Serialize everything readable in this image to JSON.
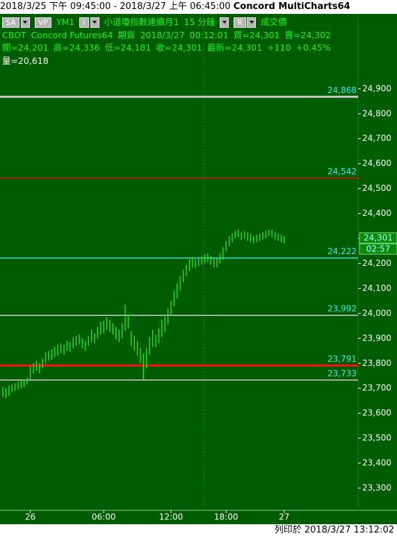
{
  "window_title": {
    "range": "2018/3/25 下午 09:45:00 - 2018/3/27 上午 06:45:00",
    "app": "Concord MultiCharts64"
  },
  "print_footer": "列印於 2018/3/27 13:12:02",
  "header": {
    "row1": {
      "buttons": [
        "SA",
        "VP"
      ],
      "symbol": "YM1",
      "button_i": "I",
      "name": "小道瓊指數連續月1",
      "interval": "15 分鐘",
      "button_r": "R",
      "field": "成交價"
    },
    "row2": [
      "CBOT",
      "Concord Futures64",
      "期貨",
      "2018/3/27",
      "00:12:01",
      "買=24,301",
      "賣=24,302"
    ],
    "row3": [
      "開=24,201",
      "高=24,336",
      "低=24,181",
      "收=24,301",
      "最新=24,301",
      "+110",
      "+0.45%"
    ],
    "row4": "量=20,618"
  },
  "chart_data": {
    "type": "hl",
    "color": "#2ee62e",
    "background": "#005c00",
    "ylim": [
      23211,
      25200
    ],
    "yticks": [
      {
        "value": 23300,
        "label": "23,300"
      },
      {
        "value": 23400,
        "label": "23,400"
      },
      {
        "value": 23500,
        "label": "23,500"
      },
      {
        "value": 23600,
        "label": "23,600"
      },
      {
        "value": 23700,
        "label": "23,700"
      },
      {
        "value": 23800,
        "label": "23,800"
      },
      {
        "value": 23900,
        "label": "23,900"
      },
      {
        "value": 24000,
        "label": "24,000"
      },
      {
        "value": 24100,
        "label": "24,100"
      },
      {
        "value": 24200,
        "label": "24,200"
      },
      {
        "value": 24300,
        "label": "24,300"
      },
      {
        "value": 24400,
        "label": "24,400"
      },
      {
        "value": 24500,
        "label": "24,500"
      },
      {
        "value": 24600,
        "label": "24,600"
      },
      {
        "value": 24700,
        "label": "24,700"
      },
      {
        "value": 24800,
        "label": "24,800"
      },
      {
        "value": 24900,
        "label": "24,900"
      }
    ],
    "categories": [
      null,
      null,
      null,
      null,
      null,
      null,
      null,
      null,
      null,
      "26",
      null,
      null,
      null,
      null,
      null,
      null,
      null,
      null,
      null,
      null,
      null,
      null,
      null,
      null,
      null,
      null,
      null,
      null,
      null,
      null,
      null,
      null,
      null,
      "06:00",
      null,
      null,
      null,
      null,
      null,
      null,
      null,
      null,
      null,
      null,
      null,
      null,
      null,
      null,
      null,
      null,
      null,
      null,
      null,
      null,
      null,
      "12:00",
      null,
      null,
      null,
      null,
      null,
      null,
      null,
      null,
      null,
      null,
      null,
      null,
      null,
      null,
      null,
      null,
      null,
      "18:00",
      null,
      null,
      null,
      null,
      null,
      null,
      null,
      null,
      null,
      null,
      null,
      null,
      null,
      null,
      null,
      null,
      null,
      null,
      "27"
    ],
    "high": [
      23705,
      23700,
      23710,
      23715,
      23720,
      23725,
      23730,
      23735,
      23745,
      23790,
      23800,
      23810,
      23800,
      23820,
      23845,
      23850,
      23855,
      23865,
      23875,
      23880,
      23875,
      23890,
      23885,
      23905,
      23910,
      23915,
      23900,
      23890,
      23910,
      23935,
      23920,
      23945,
      23965,
      23970,
      23985,
      23975,
      23960,
      23945,
      23935,
      23960,
      24035,
      23995,
      23930,
      23910,
      23890,
      23860,
      23840,
      23860,
      23905,
      23935,
      23915,
      23940,
      23975,
      23995,
      24020,
      24050,
      24090,
      24120,
      24150,
      24175,
      24195,
      24215,
      24225,
      24215,
      24225,
      24230,
      24235,
      24240,
      24230,
      24220,
      24225,
      24240,
      24265,
      24290,
      24310,
      24320,
      24330,
      24335,
      24325,
      24330,
      24325,
      24320,
      24310,
      24315,
      24320,
      24325,
      24330,
      24336,
      24335,
      24325,
      24320,
      24315,
      24310
    ],
    "low": [
      23665,
      23660,
      23670,
      23685,
      23690,
      23695,
      23700,
      23705,
      23715,
      23735,
      23760,
      23770,
      23760,
      23780,
      23800,
      23810,
      23815,
      23825,
      23830,
      23840,
      23835,
      23850,
      23845,
      23860,
      23870,
      23875,
      23860,
      23850,
      23870,
      23885,
      23880,
      23900,
      23915,
      23920,
      23935,
      23925,
      23915,
      23895,
      23885,
      23900,
      23930,
      23940,
      23870,
      23850,
      23830,
      23800,
      23733,
      23780,
      23835,
      23865,
      23865,
      23880,
      23905,
      23925,
      23955,
      23990,
      24030,
      24060,
      24090,
      24125,
      24150,
      24170,
      24185,
      24181,
      24190,
      24195,
      24200,
      24205,
      24195,
      24185,
      24185,
      24200,
      24215,
      24250,
      24270,
      24285,
      24300,
      24305,
      24295,
      24300,
      24290,
      24285,
      24280,
      24285,
      24290,
      24295,
      24300,
      24310,
      24305,
      24295,
      24290,
      24285,
      24280
    ],
    "levels": [
      {
        "value": 24868,
        "label": "24,868",
        "color": "#c8c8c8",
        "thick": true
      },
      {
        "value": 24542,
        "label": "24,542",
        "color": "#e01010",
        "thick": false
      },
      {
        "value": 24222,
        "label": "24,222",
        "color": "#40e0e0",
        "thick": false
      },
      {
        "value": 23992,
        "label": "23,992",
        "color": "#d0d0d0",
        "thick": false
      },
      {
        "value": 23791,
        "label": "23,791",
        "color": "#ff1010",
        "thick": true
      },
      {
        "value": 23733,
        "label": "23,733",
        "color": "#d0d0d0",
        "thick": false
      }
    ],
    "last_price": {
      "value": 24301,
      "label": "24,301"
    },
    "countdown": "02:57"
  }
}
